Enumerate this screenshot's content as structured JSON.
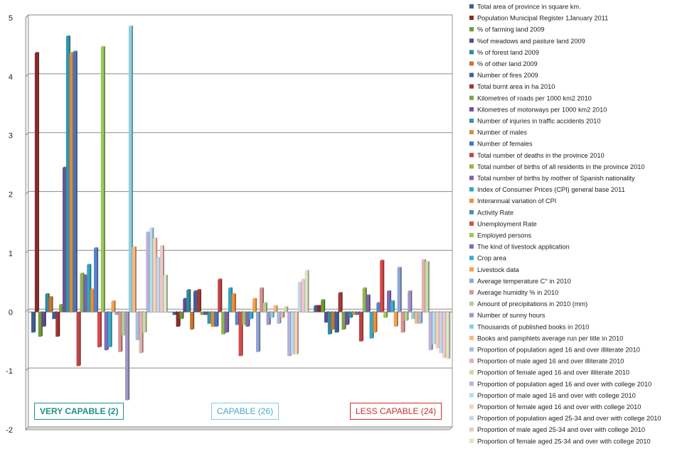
{
  "chart_data": {
    "type": "bar",
    "title": "",
    "xlabel": "",
    "ylabel": "",
    "ylim": [
      -2,
      5
    ],
    "yticks": [
      -2,
      -1,
      0,
      1,
      2,
      3,
      4,
      5
    ],
    "grid": true,
    "legend_position": "right",
    "groups": [
      "VERY CAPABLE (2)",
      "CAPABLE (26)",
      "LESS CAPABLE (24)"
    ],
    "series": [
      {
        "name": "Total area of province in square km.",
        "color": "#3f5f8f",
        "values": [
          -0.35,
          -0.05,
          0.1
        ]
      },
      {
        "name": "Population Municipal Register 1January 2011",
        "color": "#8b2a2a",
        "values": [
          4.4,
          -0.25,
          0.1
        ]
      },
      {
        "name": "% of farming land 2009",
        "color": "#6e9a3a",
        "values": [
          -0.42,
          -0.12,
          0.2
        ]
      },
      {
        "name": "%of meadows and pasture land 2009",
        "color": "#5d4a8a",
        "values": [
          -0.25,
          0.22,
          -0.18
        ]
      },
      {
        "name": "% of forest land 2009",
        "color": "#2f8aa0",
        "values": [
          0.3,
          0.37,
          -0.38
        ]
      },
      {
        "name": "% of other land 2009",
        "color": "#c8762a",
        "values": [
          0.25,
          -0.3,
          -0.3
        ]
      },
      {
        "name": "Number of fires 2009",
        "color": "#3d5f9a",
        "values": [
          -0.12,
          0.35,
          -0.35
        ]
      },
      {
        "name": "Total burnt area in ha 2010",
        "color": "#a33636",
        "values": [
          -0.42,
          0.37,
          0.32
        ]
      },
      {
        "name": "Kilometres of roads per 1000 km2 2010",
        "color": "#7fa04a",
        "values": [
          0.12,
          -0.05,
          -0.3
        ]
      },
      {
        "name": "Kilometres of motorways per 1000 km2 2010",
        "color": "#6a5294",
        "values": [
          2.45,
          -0.05,
          -0.22
        ]
      },
      {
        "name": "Number of injuries in traffic accidents 2010",
        "color": "#2e97b0",
        "values": [
          4.68,
          -0.2,
          -0.1
        ]
      },
      {
        "name": "Number of males",
        "color": "#e08a3a",
        "values": [
          4.4,
          -0.25,
          -0.05
        ]
      },
      {
        "name": "Number of females",
        "color": "#4a76b8",
        "values": [
          4.42,
          -0.25,
          -0.05
        ]
      },
      {
        "name": "Total number of deaths in the province 2010",
        "color": "#c04444",
        "values": [
          -0.92,
          0.55,
          -0.5
        ]
      },
      {
        "name": "Total number of births of all residents in the province 2010",
        "color": "#8fb450",
        "values": [
          0.65,
          -0.38,
          0.4
        ]
      },
      {
        "name": "Total number of births by mother of Spanish nationality",
        "color": "#7a62a8",
        "values": [
          0.62,
          -0.35,
          0.28
        ]
      },
      {
        "name": "Index of Consumer Prices (CPI) general base 2011",
        "color": "#33a7c2",
        "values": [
          0.8,
          0.4,
          -0.45
        ]
      },
      {
        "name": "Interannual variation of CPI",
        "color": "#f08e36",
        "values": [
          0.38,
          0.3,
          -0.35
        ]
      },
      {
        "name": "Activity Rate",
        "color": "#5385cc",
        "values": [
          1.08,
          -0.22,
          0.15
        ]
      },
      {
        "name": "Unemployment Rate",
        "color": "#d84a48",
        "values": [
          -0.6,
          -0.75,
          0.87
        ]
      },
      {
        "name": "Employed persons",
        "color": "#9cc85a",
        "values": [
          4.5,
          -0.22,
          -0.1
        ]
      },
      {
        "name": "The kind of livestock application",
        "color": "#8668b8",
        "values": [
          -0.65,
          -0.25,
          0.35
        ]
      },
      {
        "name": "Crop area",
        "color": "#35b0cc",
        "values": [
          -0.6,
          -0.12,
          0.18
        ]
      },
      {
        "name": "Livestock data",
        "color": "#f5a050",
        "values": [
          0.18,
          0.22,
          -0.25
        ]
      },
      {
        "name": "Average temperature C° in 2010",
        "color": "#8ea6d6",
        "values": [
          -0.05,
          -0.68,
          0.75
        ]
      },
      {
        "name": "Average humidity  % in 2010",
        "color": "#d89390",
        "values": [
          -0.68,
          0.4,
          -0.35
        ]
      },
      {
        "name": "Amount of precipitations in 2010 (mm)",
        "color": "#b6cf92",
        "values": [
          -0.4,
          0.15,
          -0.15
        ]
      },
      {
        "name": "Number of sunny hours",
        "color": "#a495c8",
        "values": [
          -1.5,
          -0.22,
          0.35
        ]
      },
      {
        "name": "Thousands of published books in 2010",
        "color": "#8cd0e0",
        "values": [
          4.85,
          -0.1,
          -0.12
        ]
      },
      {
        "name": "Books and pamphlets average run per title in 2010",
        "color": "#f7b884",
        "values": [
          1.1,
          0.1,
          -0.2
        ]
      },
      {
        "name": "Proportion of population aged 16 and over illiterate 2010",
        "color": "#a9bde0",
        "values": [
          -0.48,
          -0.2,
          -0.2
        ]
      },
      {
        "name": "Proportion of male aged 16 and over illiterate 2010",
        "color": "#e2b0ae",
        "values": [
          -0.7,
          -0.1,
          0.88
        ]
      },
      {
        "name": "Proportion of female aged 16 and over illiterate 2010",
        "color": "#c8dba8",
        "values": [
          -0.35,
          0.08,
          0.85
        ]
      },
      {
        "name": "Proportion of population aged 16 and over with college 2010",
        "color": "#bbb1d8",
        "values": [
          1.35,
          -0.75,
          -0.65
        ]
      },
      {
        "name": "Proportion of male aged 16 and over with college 2010",
        "color": "#b0def0",
        "values": [
          1.42,
          -0.72,
          -0.55
        ]
      },
      {
        "name": "Proportion of female aged 16 and over with college 2010",
        "color": "#fad0b2",
        "values": [
          1.25,
          -0.72,
          -0.62
        ]
      },
      {
        "name": "Proportion of population aged 25-34 and over with college 2010",
        "color": "#c8d3ec",
        "values": [
          0.92,
          0.5,
          -0.7
        ]
      },
      {
        "name": "Proportion of male aged 25-34 and over with college 2010",
        "color": "#ecc9c8",
        "values": [
          1.12,
          0.55,
          -0.78
        ]
      },
      {
        "name": "Proportion of female aged 25-34 and over with college 2010",
        "color": "#dae6c6",
        "values": [
          0.62,
          0.7,
          -0.8
        ]
      }
    ]
  }
}
